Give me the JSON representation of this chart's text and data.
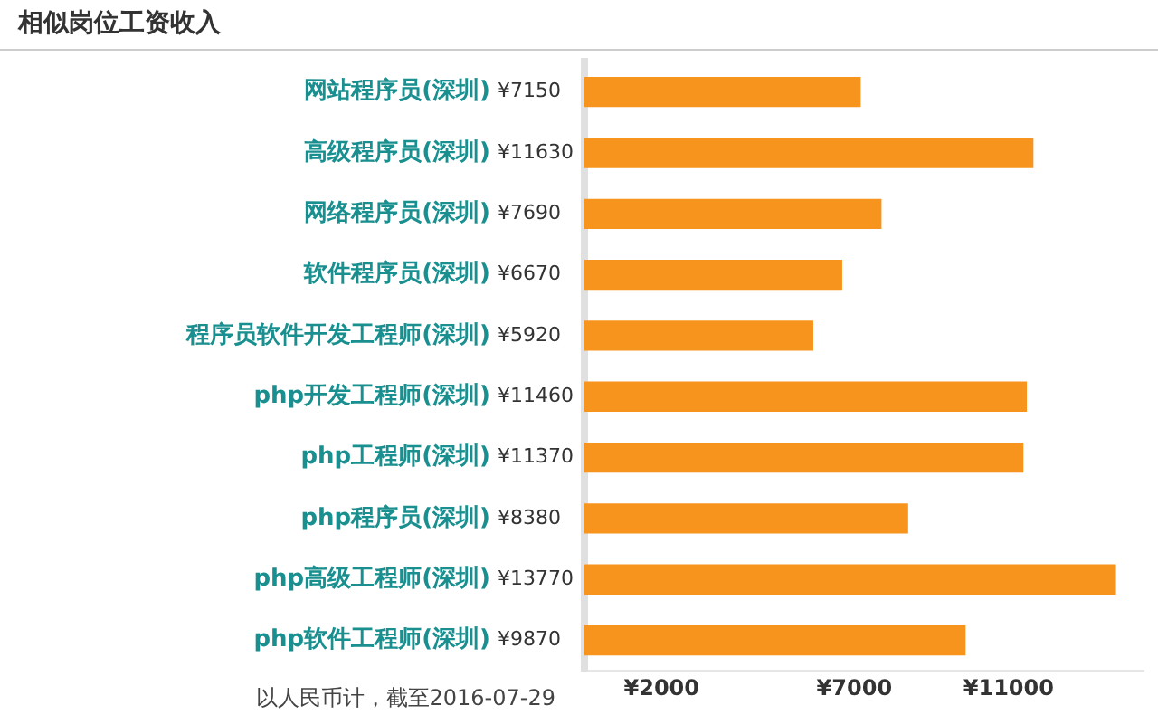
{
  "chart_data": {
    "type": "bar",
    "title": "相似岗位工资收入",
    "orientation": "horizontal",
    "categories": [
      "网站程序员(深圳)",
      "高级程序员(深圳)",
      "网络程序员(深圳)",
      "软件程序员(深圳)",
      "程序员软件开发工程师(深圳)",
      "php开发工程师(深圳)",
      "php工程师(深圳)",
      "php程序员(深圳)",
      "php高级工程师(深圳)",
      "php软件工程师(深圳)"
    ],
    "values": [
      7150,
      11630,
      7690,
      6670,
      5920,
      11460,
      11370,
      8380,
      13770,
      9870
    ],
    "value_labels": [
      "¥7150",
      "¥11630",
      "¥7690",
      "¥6670",
      "¥5920",
      "¥11460",
      "¥11370",
      "¥8380",
      "¥13770",
      "¥9870"
    ],
    "color": "#f7941d",
    "xlim": [
      0,
      14500
    ],
    "xticks": [
      {
        "value": 2000,
        "label": "¥2000"
      },
      {
        "value": 7000,
        "label": "¥7000"
      },
      {
        "value": 11000,
        "label": "¥11000"
      }
    ],
    "grid": false,
    "annotations": [
      "以人民币计，截至2016-07-29"
    ]
  }
}
